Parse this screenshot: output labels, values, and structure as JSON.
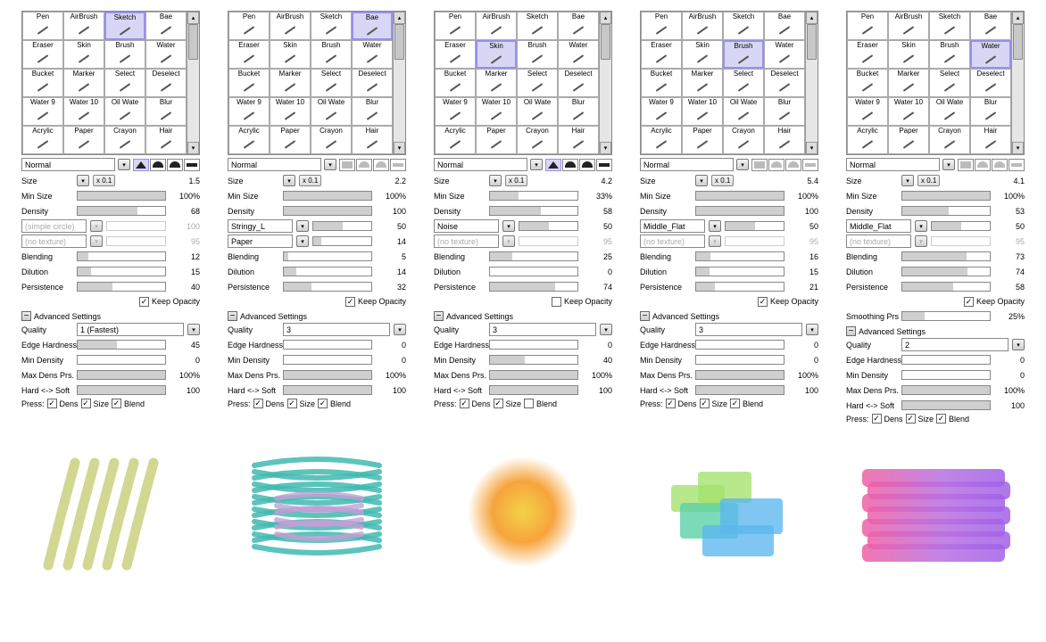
{
  "tools": [
    {
      "label": "Pen"
    },
    {
      "label": "AirBrush"
    },
    {
      "label": "Sketch"
    },
    {
      "label": "Bae"
    },
    {
      "label": "Eraser"
    },
    {
      "label": "Skin"
    },
    {
      "label": "Brush"
    },
    {
      "label": "Water"
    },
    {
      "label": "Bucket"
    },
    {
      "label": "Marker"
    },
    {
      "label": "Select"
    },
    {
      "label": "Deselect"
    },
    {
      "label": "Water 9"
    },
    {
      "label": "Water 10"
    },
    {
      "label": "Oil Wate"
    },
    {
      "label": "Blur"
    },
    {
      "label": "Acrylic"
    },
    {
      "label": "Paper"
    },
    {
      "label": "Crayon"
    },
    {
      "label": "Hair"
    }
  ],
  "labels": {
    "size": "Size",
    "minSize": "Min Size",
    "density": "Density",
    "blending": "Blending",
    "dilution": "Dilution",
    "persistence": "Persistence",
    "keepOpacity": "Keep Opacity",
    "advanced": "Advanced Settings",
    "quality": "Quality",
    "edgeHardness": "Edge Hardness",
    "minDensity": "Min Density",
    "maxDensPrs": "Max Dens Prs.",
    "hardSoft": "Hard <-> Soft",
    "press": "Press:",
    "dens": "Dens",
    "sizeChk": "Size",
    "blend": "Blend",
    "smoothingPrs": "Smoothing Prs",
    "x01": "x 0.1"
  },
  "panels": [
    {
      "selectedTool": 2,
      "blendMode": "Normal",
      "shapesActive": true,
      "shapeSelected": 0,
      "size": "1.5",
      "minSize": "100%",
      "minSizePct": 100,
      "density": "68",
      "densityPct": 68,
      "tex1": {
        "name": "(simple circle)",
        "val": "100",
        "disabled": true
      },
      "tex2": {
        "name": "(no texture)",
        "val": "95",
        "disabled": true
      },
      "blending": "12",
      "blendingPct": 12,
      "dilution": "15",
      "dilutionPct": 15,
      "persistence": "40",
      "persistencePct": 40,
      "keepOpacity": true,
      "quality": "1 (Fastest)",
      "edgeHardness": "45",
      "edgeHardnessPct": 45,
      "minDensity": "0",
      "minDensityPct": 0,
      "maxDensPrs": "100%",
      "maxDensPrsPct": 100,
      "hardSoft": "100",
      "hardSoftPct": 100,
      "pressDens": true,
      "pressSize": true,
      "pressBlend": true
    },
    {
      "selectedTool": 3,
      "blendMode": "Normal",
      "shapesActive": false,
      "size": "2.2",
      "minSize": "100%",
      "minSizePct": 100,
      "density": "100",
      "densityPct": 100,
      "tex1": {
        "name": "Stringy_L",
        "val": "50",
        "pct": 50
      },
      "tex2": {
        "name": "Paper",
        "val": "14",
        "pct": 14
      },
      "blending": "5",
      "blendingPct": 5,
      "dilution": "14",
      "dilutionPct": 14,
      "persistence": "32",
      "persistencePct": 32,
      "keepOpacity": true,
      "quality": "3",
      "edgeHardness": "0",
      "edgeHardnessPct": 0,
      "minDensity": "0",
      "minDensityPct": 0,
      "maxDensPrs": "100%",
      "maxDensPrsPct": 100,
      "hardSoft": "100",
      "hardSoftPct": 100,
      "pressDens": true,
      "pressSize": true,
      "pressBlend": true
    },
    {
      "selectedTool": 5,
      "blendMode": "Normal",
      "shapesActive": true,
      "shapeSelected": 0,
      "size": "4.2",
      "minSize": "33%",
      "minSizePct": 33,
      "density": "58",
      "densityPct": 58,
      "tex1": {
        "name": "Noise",
        "val": "50",
        "pct": 50
      },
      "tex2": {
        "name": "(no texture)",
        "val": "95",
        "disabled": true
      },
      "blending": "25",
      "blendingPct": 25,
      "dilution": "0",
      "dilutionPct": 0,
      "persistence": "74",
      "persistencePct": 74,
      "keepOpacity": false,
      "quality": "3",
      "edgeHardness": "0",
      "edgeHardnessPct": 0,
      "minDensity": "40",
      "minDensityPct": 40,
      "maxDensPrs": "100%",
      "maxDensPrsPct": 100,
      "hardSoft": "100",
      "hardSoftPct": 100,
      "pressDens": true,
      "pressSize": true,
      "pressBlend": false
    },
    {
      "selectedTool": 6,
      "blendMode": "Normal",
      "shapesActive": false,
      "size": "5.4",
      "minSize": "100%",
      "minSizePct": 100,
      "density": "100",
      "densityPct": 100,
      "tex1": {
        "name": "Middle_Flat",
        "val": "50",
        "pct": 50
      },
      "tex2": {
        "name": "(no texture)",
        "val": "95",
        "disabled": true
      },
      "blending": "16",
      "blendingPct": 16,
      "dilution": "15",
      "dilutionPct": 15,
      "persistence": "21",
      "persistencePct": 21,
      "keepOpacity": true,
      "quality": "3",
      "edgeHardness": "0",
      "edgeHardnessPct": 0,
      "minDensity": "0",
      "minDensityPct": 0,
      "maxDensPrs": "100%",
      "maxDensPrsPct": 100,
      "hardSoft": "100",
      "hardSoftPct": 100,
      "pressDens": true,
      "pressSize": true,
      "pressBlend": true
    },
    {
      "selectedTool": 7,
      "blendMode": "Normal",
      "shapesActive": false,
      "size": "4.1",
      "minSize": "100%",
      "minSizePct": 100,
      "density": "53",
      "densityPct": 53,
      "tex1": {
        "name": "Middle_Flat",
        "val": "50",
        "pct": 50
      },
      "tex2": {
        "name": "(no texture)",
        "val": "95",
        "disabled": true
      },
      "blending": "73",
      "blendingPct": 73,
      "dilution": "74",
      "dilutionPct": 74,
      "persistence": "58",
      "persistencePct": 58,
      "keepOpacity": true,
      "smoothingPrs": "25%",
      "smoothingPrsPct": 25,
      "quality": "2",
      "edgeHardness": "0",
      "edgeHardnessPct": 0,
      "minDensity": "0",
      "minDensityPct": 0,
      "maxDensPrs": "100%",
      "maxDensPrsPct": 100,
      "hardSoft": "100",
      "hardSoftPct": 100,
      "pressDens": true,
      "pressSize": true,
      "pressBlend": true
    }
  ],
  "samples": [
    {
      "type": "strokes",
      "colors": [
        "#c3c96e"
      ],
      "count": 5
    },
    {
      "type": "scribble",
      "colors": [
        "#3fbab0",
        "#c49fd6"
      ]
    },
    {
      "type": "sunburst",
      "colors": [
        "#f6a43b",
        "#f4d24a"
      ]
    },
    {
      "type": "patches",
      "colors": [
        "#a4e26c",
        "#58d0a5",
        "#5bb6f0"
      ]
    },
    {
      "type": "wash",
      "colors": [
        "#f05fa5",
        "#b86fe0",
        "#a060e8"
      ]
    }
  ]
}
